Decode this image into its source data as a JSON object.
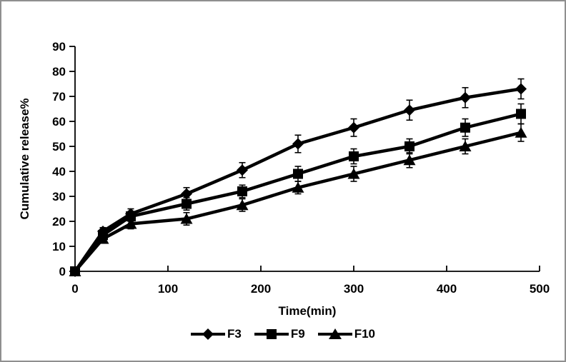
{
  "window": {
    "background": "#ffffff",
    "border_color": "#8f8f8f"
  },
  "chart_data": {
    "type": "line",
    "title": "",
    "xlabel": "Time(min)",
    "ylabel": "Cumulative release%",
    "x": [
      0,
      30,
      60,
      120,
      180,
      240,
      300,
      360,
      420,
      480
    ],
    "series": [
      {
        "name": "F3",
        "marker": "diamond",
        "values": [
          0,
          16,
          23,
          31,
          40.5,
          51,
          57.5,
          64.5,
          69.5,
          73
        ],
        "errors": [
          0,
          1.5,
          2,
          2.5,
          3,
          3.5,
          3.5,
          4,
          4,
          4
        ]
      },
      {
        "name": "F9",
        "marker": "square",
        "values": [
          0,
          14.5,
          22,
          27,
          32,
          39,
          46,
          50,
          57.5,
          63
        ],
        "errors": [
          0,
          1.5,
          2,
          2.5,
          2.5,
          3,
          3,
          3,
          3.5,
          4
        ]
      },
      {
        "name": "F10",
        "marker": "triangle",
        "values": [
          0,
          13,
          19,
          21,
          26.5,
          33.5,
          39,
          44.5,
          50,
          55.5
        ],
        "errors": [
          0,
          1.5,
          2,
          2.5,
          2.5,
          2.5,
          3,
          3,
          3,
          3.5
        ]
      }
    ],
    "xlim": [
      0,
      500
    ],
    "ylim": [
      0,
      90
    ],
    "x_ticks": [
      0,
      100,
      200,
      300,
      400,
      500
    ],
    "y_ticks": [
      0,
      10,
      20,
      30,
      40,
      50,
      60,
      70,
      80,
      90
    ],
    "grid": false,
    "legend_position": "bottom-center",
    "line_color": "#000000",
    "marker_color": "#000000"
  }
}
